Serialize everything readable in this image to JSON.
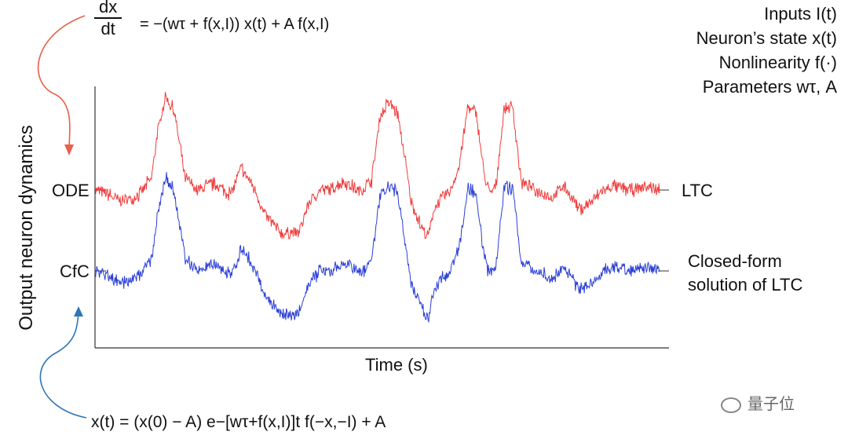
{
  "equations": {
    "ode_lhs_num": "dx",
    "ode_lhs_den": "dt",
    "ode_rhs": "= −(wτ + f(x,I)) x(t) + A f(x,I)",
    "cfc": "x(t) = (x(0) − A) e−[wτ+f(x,I)]t f(−x,−I) + A"
  },
  "legend": [
    "Inputs I(t)",
    "Neuron’s state x(t)",
    "Nonlinearity f(·)",
    "Parameters wτ, A"
  ],
  "axis_labels": {
    "y": "Output neuron dynamics",
    "x": "Time (s)"
  },
  "row_labels": {
    "ode": "ODE",
    "cfc": "CfC"
  },
  "series_labels": {
    "ltc": "LTC",
    "cfc_line1": "Closed-form",
    "cfc_line2": "solution of LTC"
  },
  "watermark": "量子位",
  "colors": {
    "ode_series": "#f03c3c",
    "cfc_series": "#2b3fd6",
    "top_arrow": "#e8604a",
    "bottom_arrow": "#2e77b8",
    "axis": "#333333"
  },
  "chart_data": {
    "type": "line",
    "x_range": [
      0,
      1
    ],
    "grid": false,
    "series": [
      {
        "name": "LTC",
        "baseline": 1.0,
        "keypoints": [
          [
            0.0,
            0.0
          ],
          [
            0.02,
            -0.05
          ],
          [
            0.05,
            -0.15
          ],
          [
            0.08,
            -0.05
          ],
          [
            0.1,
            0.15
          ],
          [
            0.11,
            0.7
          ],
          [
            0.125,
            1.2
          ],
          [
            0.14,
            1.0
          ],
          [
            0.16,
            0.15
          ],
          [
            0.18,
            0.0
          ],
          [
            0.21,
            0.08
          ],
          [
            0.24,
            -0.05
          ],
          [
            0.26,
            0.28
          ],
          [
            0.28,
            0.05
          ],
          [
            0.3,
            -0.3
          ],
          [
            0.33,
            -0.55
          ],
          [
            0.36,
            -0.55
          ],
          [
            0.38,
            -0.15
          ],
          [
            0.4,
            0.02
          ],
          [
            0.42,
            0.0
          ],
          [
            0.44,
            0.12
          ],
          [
            0.47,
            -0.02
          ],
          [
            0.49,
            0.12
          ],
          [
            0.505,
            0.95
          ],
          [
            0.52,
            1.1
          ],
          [
            0.535,
            1.0
          ],
          [
            0.55,
            0.35
          ],
          [
            0.56,
            -0.15
          ],
          [
            0.58,
            -0.5
          ],
          [
            0.59,
            -0.6
          ],
          [
            0.6,
            -0.25
          ],
          [
            0.61,
            -0.15
          ],
          [
            0.63,
            0.0
          ],
          [
            0.645,
            0.3
          ],
          [
            0.66,
            1.05
          ],
          [
            0.675,
            1.0
          ],
          [
            0.69,
            0.15
          ],
          [
            0.7,
            -0.05
          ],
          [
            0.71,
            0.05
          ],
          [
            0.725,
            1.05
          ],
          [
            0.74,
            1.05
          ],
          [
            0.755,
            0.1
          ],
          [
            0.78,
            0.0
          ],
          [
            0.81,
            -0.1
          ],
          [
            0.83,
            0.05
          ],
          [
            0.86,
            -0.25
          ],
          [
            0.88,
            -0.15
          ],
          [
            0.9,
            0.0
          ],
          [
            0.92,
            0.05
          ],
          [
            0.95,
            0.0
          ],
          [
            0.98,
            0.05
          ],
          [
            1.0,
            0.0
          ]
        ]
      },
      {
        "name": "Closed-form solution of LTC",
        "baseline": 0.0,
        "keypoints": [
          [
            0.0,
            0.0
          ],
          [
            0.02,
            -0.05
          ],
          [
            0.05,
            -0.15
          ],
          [
            0.08,
            -0.05
          ],
          [
            0.1,
            0.15
          ],
          [
            0.11,
            0.7
          ],
          [
            0.125,
            1.2
          ],
          [
            0.14,
            1.0
          ],
          [
            0.16,
            0.15
          ],
          [
            0.18,
            0.0
          ],
          [
            0.21,
            0.08
          ],
          [
            0.24,
            -0.05
          ],
          [
            0.26,
            0.28
          ],
          [
            0.28,
            0.05
          ],
          [
            0.3,
            -0.3
          ],
          [
            0.33,
            -0.55
          ],
          [
            0.36,
            -0.55
          ],
          [
            0.38,
            -0.15
          ],
          [
            0.4,
            0.02
          ],
          [
            0.42,
            0.0
          ],
          [
            0.44,
            0.12
          ],
          [
            0.47,
            -0.02
          ],
          [
            0.49,
            0.12
          ],
          [
            0.505,
            0.95
          ],
          [
            0.52,
            1.1
          ],
          [
            0.535,
            1.0
          ],
          [
            0.55,
            0.35
          ],
          [
            0.56,
            -0.15
          ],
          [
            0.58,
            -0.5
          ],
          [
            0.59,
            -0.6
          ],
          [
            0.6,
            -0.25
          ],
          [
            0.61,
            -0.15
          ],
          [
            0.63,
            0.0
          ],
          [
            0.645,
            0.3
          ],
          [
            0.66,
            1.05
          ],
          [
            0.675,
            1.0
          ],
          [
            0.69,
            0.15
          ],
          [
            0.7,
            -0.05
          ],
          [
            0.71,
            0.05
          ],
          [
            0.725,
            1.05
          ],
          [
            0.74,
            1.05
          ],
          [
            0.755,
            0.1
          ],
          [
            0.78,
            0.0
          ],
          [
            0.81,
            -0.1
          ],
          [
            0.83,
            0.05
          ],
          [
            0.86,
            -0.25
          ],
          [
            0.88,
            -0.15
          ],
          [
            0.9,
            0.0
          ],
          [
            0.92,
            0.05
          ],
          [
            0.95,
            0.0
          ],
          [
            0.98,
            0.05
          ],
          [
            1.0,
            0.0
          ]
        ]
      }
    ]
  }
}
